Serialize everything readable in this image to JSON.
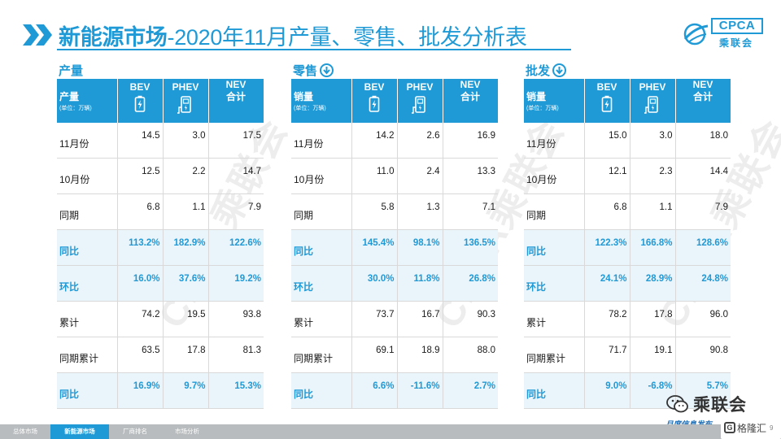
{
  "header": {
    "title_bold": "新能源市场",
    "title_rest": "-2020年11月产量、零售、批发分析表",
    "logo_text": "CPCA",
    "logo_sub": "乘联会"
  },
  "watermarks": [
    "CPCA乘联会",
    "CPCA乘联会",
    "CPCA乘联会"
  ],
  "columns": {
    "bev": "BEV",
    "phev": "PHEV",
    "nev_line1": "NEV",
    "nev_line2": "合计",
    "unit": "(单位：万辆)"
  },
  "sections": [
    {
      "label": "产量",
      "has_arrow": false,
      "metric": "产量",
      "rows": [
        {
          "label": "11月份",
          "bev": "14.5",
          "phev": "3.0",
          "nev": "17.5",
          "hl": false
        },
        {
          "label": "10月份",
          "bev": "12.5",
          "phev": "2.2",
          "nev": "14.7",
          "hl": false
        },
        {
          "label": "同期",
          "bev": "6.8",
          "phev": "1.1",
          "nev": "7.9",
          "hl": false
        },
        {
          "label": "同比",
          "bev": "113.2%",
          "phev": "182.9%",
          "nev": "122.6%",
          "hl": true
        },
        {
          "label": "环比",
          "bev": "16.0%",
          "phev": "37.6%",
          "nev": "19.2%",
          "hl": true
        },
        {
          "label": "累计",
          "bev": "74.2",
          "phev": "19.5",
          "nev": "93.8",
          "hl": false
        },
        {
          "label": "同期累计",
          "bev": "63.5",
          "phev": "17.8",
          "nev": "81.3",
          "hl": false
        },
        {
          "label": "同比",
          "bev": "16.9%",
          "phev": "9.7%",
          "nev": "15.3%",
          "hl": true
        }
      ]
    },
    {
      "label": "零售",
      "has_arrow": true,
      "metric": "销量",
      "rows": [
        {
          "label": "11月份",
          "bev": "14.2",
          "phev": "2.6",
          "nev": "16.9",
          "hl": false
        },
        {
          "label": "10月份",
          "bev": "11.0",
          "phev": "2.4",
          "nev": "13.3",
          "hl": false
        },
        {
          "label": "同期",
          "bev": "5.8",
          "phev": "1.3",
          "nev": "7.1",
          "hl": false
        },
        {
          "label": "同比",
          "bev": "145.4%",
          "phev": "98.1%",
          "nev": "136.5%",
          "hl": true
        },
        {
          "label": "环比",
          "bev": "30.0%",
          "phev": "11.8%",
          "nev": "26.8%",
          "hl": true
        },
        {
          "label": "累计",
          "bev": "73.7",
          "phev": "16.7",
          "nev": "90.3",
          "hl": false
        },
        {
          "label": "同期累计",
          "bev": "69.1",
          "phev": "18.9",
          "nev": "88.0",
          "hl": false
        },
        {
          "label": "同比",
          "bev": "6.6%",
          "phev": "-11.6%",
          "nev": "2.7%",
          "hl": true
        }
      ]
    },
    {
      "label": "批发",
      "has_arrow": true,
      "metric": "销量",
      "rows": [
        {
          "label": "11月份",
          "bev": "15.0",
          "phev": "3.0",
          "nev": "18.0",
          "hl": false
        },
        {
          "label": "10月份",
          "bev": "12.1",
          "phev": "2.3",
          "nev": "14.4",
          "hl": false
        },
        {
          "label": "同期",
          "bev": "6.8",
          "phev": "1.1",
          "nev": "7.9",
          "hl": false
        },
        {
          "label": "同比",
          "bev": "122.3%",
          "phev": "166.8%",
          "nev": "128.6%",
          "hl": true
        },
        {
          "label": "环比",
          "bev": "24.1%",
          "phev": "28.9%",
          "nev": "24.8%",
          "hl": true
        },
        {
          "label": "累计",
          "bev": "78.2",
          "phev": "17.8",
          "nev": "96.0",
          "hl": false
        },
        {
          "label": "同期累计",
          "bev": "71.7",
          "phev": "19.1",
          "nev": "90.8",
          "hl": false
        },
        {
          "label": "同比",
          "bev": "9.0%",
          "phev": "-6.8%",
          "nev": "5.7%",
          "hl": true
        }
      ]
    }
  ],
  "bottom_tabs": [
    {
      "label": "总体市场",
      "active": false
    },
    {
      "label": "新能源市场",
      "active": true
    },
    {
      "label": "厂商排名",
      "active": false
    },
    {
      "label": "市场分析",
      "active": false
    }
  ],
  "footer": {
    "brand": "乘联会",
    "slogan": "月度信息发布",
    "watermark": "格隆汇",
    "page_number": "9"
  },
  "colors": {
    "accent": "#1f9ad6",
    "highlight_row": "#e9f4fb",
    "bottom_bar": "#b9bcbe"
  }
}
